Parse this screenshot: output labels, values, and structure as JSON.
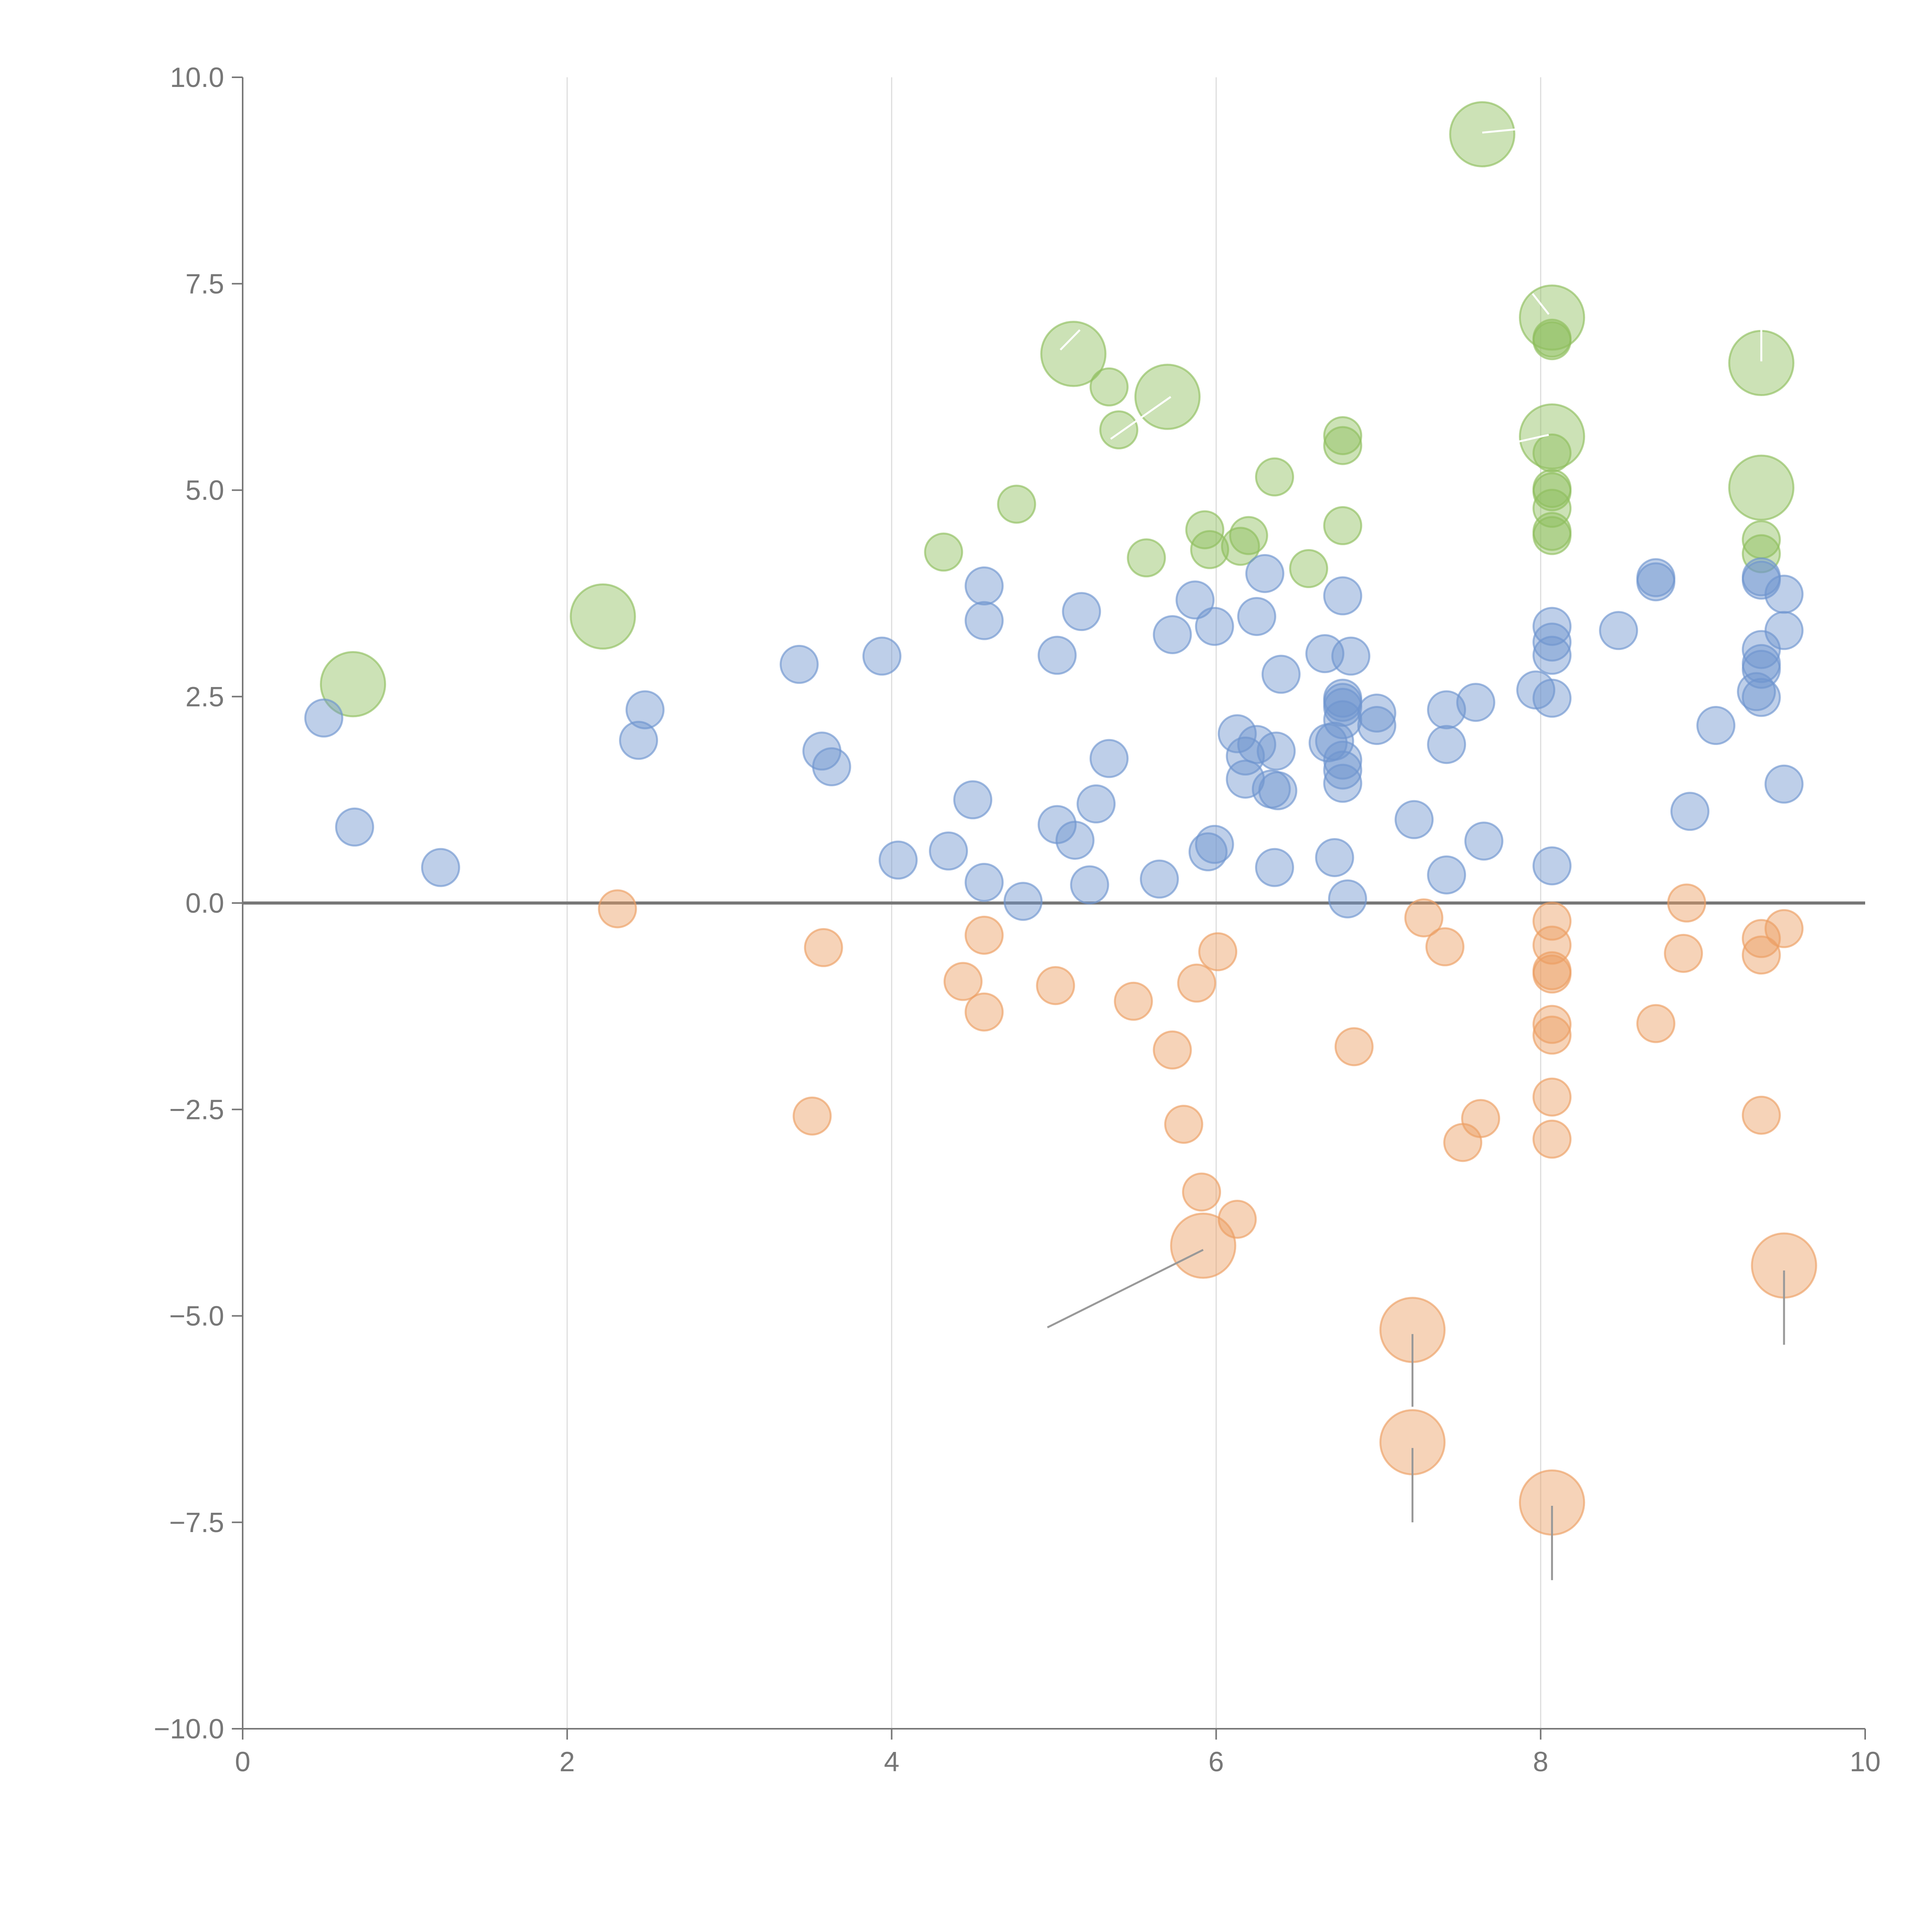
{
  "chart_data": {
    "type": "scatter",
    "title": "",
    "xlabel": "",
    "ylabel": "",
    "xlim": [
      0,
      10
    ],
    "ylim": [
      -10,
      10
    ],
    "x_ticks": [
      "0",
      "2",
      "4",
      "6",
      "8",
      "10"
    ],
    "y_ticks": [
      "10.0",
      "7.5",
      "5.0",
      "2.5",
      "0.0",
      "−2.5",
      "−5.0",
      "−7.5",
      "−10.0"
    ],
    "x_tick_values": [
      0,
      2,
      4,
      6,
      8,
      10
    ],
    "y_tick_values": [
      10,
      7.5,
      5,
      2.5,
      0,
      -2.5,
      -5,
      -7.5,
      -10
    ],
    "vertical_grid_at": [
      2,
      4,
      6,
      8
    ],
    "zero_line_y": 0,
    "colors": {
      "positive": "#8fbe5e",
      "neutral": "#6f95cf",
      "negative": "#ec9e62",
      "axis": "#777777",
      "grid": "#dddddd",
      "leader_light": "#ffffff",
      "leader_dark": "#999999"
    },
    "series": [
      {
        "name": "positive",
        "color": "#8fbe5e",
        "points": [
          {
            "x": 0.68,
            "y": 2.65,
            "size": 3
          },
          {
            "x": 2.22,
            "y": 3.47,
            "size": 3
          },
          {
            "x": 4.32,
            "y": 4.25,
            "size": 1
          },
          {
            "x": 4.77,
            "y": 4.83,
            "size": 1
          },
          {
            "x": 5.12,
            "y": 6.65,
            "size": 3
          },
          {
            "x": 5.34,
            "y": 6.25,
            "size": 1
          },
          {
            "x": 5.4,
            "y": 5.73,
            "size": 1
          },
          {
            "x": 5.57,
            "y": 4.18,
            "size": 1
          },
          {
            "x": 5.7,
            "y": 6.13,
            "size": 3
          },
          {
            "x": 5.93,
            "y": 4.52,
            "size": 1
          },
          {
            "x": 5.96,
            "y": 4.28,
            "size": 1
          },
          {
            "x": 6.15,
            "y": 4.32,
            "size": 1
          },
          {
            "x": 6.2,
            "y": 4.45,
            "size": 1
          },
          {
            "x": 6.36,
            "y": 5.16,
            "size": 1
          },
          {
            "x": 6.57,
            "y": 4.05,
            "size": 1
          },
          {
            "x": 6.78,
            "y": 5.66,
            "size": 1
          },
          {
            "x": 6.78,
            "y": 5.54,
            "size": 1
          },
          {
            "x": 6.78,
            "y": 4.57,
            "size": 1
          },
          {
            "x": 7.64,
            "y": 9.31,
            "size": 3
          },
          {
            "x": 8.07,
            "y": 7.09,
            "size": 3
          },
          {
            "x": 8.07,
            "y": 6.84,
            "size": 1
          },
          {
            "x": 8.07,
            "y": 6.81,
            "size": 1
          },
          {
            "x": 8.07,
            "y": 5.65,
            "size": 3
          },
          {
            "x": 8.07,
            "y": 5.45,
            "size": 1
          },
          {
            "x": 8.07,
            "y": 5.02,
            "size": 1
          },
          {
            "x": 8.07,
            "y": 4.98,
            "size": 1
          },
          {
            "x": 8.07,
            "y": 4.78,
            "size": 1
          },
          {
            "x": 8.07,
            "y": 4.5,
            "size": 1
          },
          {
            "x": 8.07,
            "y": 4.45,
            "size": 1
          },
          {
            "x": 9.36,
            "y": 6.54,
            "size": 3
          },
          {
            "x": 9.36,
            "y": 5.03,
            "size": 3
          },
          {
            "x": 9.36,
            "y": 4.4,
            "size": 1
          },
          {
            "x": 9.36,
            "y": 4.23,
            "size": 1
          }
        ]
      },
      {
        "name": "neutral",
        "color": "#6f95cf",
        "points": [
          {
            "x": 0.5,
            "y": 2.24
          },
          {
            "x": 0.69,
            "y": 0.92
          },
          {
            "x": 1.22,
            "y": 0.43
          },
          {
            "x": 2.44,
            "y": 1.97
          },
          {
            "x": 2.48,
            "y": 2.34
          },
          {
            "x": 3.43,
            "y": 2.89
          },
          {
            "x": 3.57,
            "y": 1.84
          },
          {
            "x": 3.63,
            "y": 1.65
          },
          {
            "x": 3.94,
            "y": 2.99
          },
          {
            "x": 4.04,
            "y": 0.52
          },
          {
            "x": 4.35,
            "y": 0.63
          },
          {
            "x": 4.5,
            "y": 1.25
          },
          {
            "x": 4.57,
            "y": 3.84
          },
          {
            "x": 4.57,
            "y": 3.42
          },
          {
            "x": 4.57,
            "y": 0.25
          },
          {
            "x": 4.81,
            "y": 0.02
          },
          {
            "x": 5.02,
            "y": 3.0
          },
          {
            "x": 5.02,
            "y": 0.95
          },
          {
            "x": 5.13,
            "y": 0.76
          },
          {
            "x": 5.17,
            "y": 3.53
          },
          {
            "x": 5.22,
            "y": 0.22
          },
          {
            "x": 5.26,
            "y": 1.2
          },
          {
            "x": 5.34,
            "y": 1.75
          },
          {
            "x": 5.65,
            "y": 0.29
          },
          {
            "x": 5.73,
            "y": 3.25
          },
          {
            "x": 5.87,
            "y": 3.67
          },
          {
            "x": 5.95,
            "y": 0.62
          },
          {
            "x": 5.99,
            "y": 0.71
          },
          {
            "x": 5.99,
            "y": 3.35
          },
          {
            "x": 6.13,
            "y": 2.05
          },
          {
            "x": 6.18,
            "y": 1.78
          },
          {
            "x": 6.18,
            "y": 1.5
          },
          {
            "x": 6.25,
            "y": 3.47
          },
          {
            "x": 6.25,
            "y": 1.92
          },
          {
            "x": 6.3,
            "y": 3.99
          },
          {
            "x": 6.34,
            "y": 1.38
          },
          {
            "x": 6.36,
            "y": 0.43
          },
          {
            "x": 6.37,
            "y": 1.84
          },
          {
            "x": 6.38,
            "y": 1.36
          },
          {
            "x": 6.4,
            "y": 2.77
          },
          {
            "x": 6.67,
            "y": 3.02
          },
          {
            "x": 6.69,
            "y": 1.94
          },
          {
            "x": 6.73,
            "y": 0.55
          },
          {
            "x": 6.73,
            "y": 1.96
          },
          {
            "x": 6.78,
            "y": 3.72
          },
          {
            "x": 6.78,
            "y": 2.48
          },
          {
            "x": 6.78,
            "y": 2.43
          },
          {
            "x": 6.78,
            "y": 2.37
          },
          {
            "x": 6.78,
            "y": 2.22
          },
          {
            "x": 6.78,
            "y": 1.73
          },
          {
            "x": 6.78,
            "y": 1.61
          },
          {
            "x": 6.78,
            "y": 1.45
          },
          {
            "x": 6.81,
            "y": 0.05
          },
          {
            "x": 6.83,
            "y": 2.99
          },
          {
            "x": 6.99,
            "y": 2.3
          },
          {
            "x": 6.99,
            "y": 2.15
          },
          {
            "x": 7.22,
            "y": 1.01
          },
          {
            "x": 7.42,
            "y": 2.34
          },
          {
            "x": 7.42,
            "y": 1.92
          },
          {
            "x": 7.42,
            "y": 0.34
          },
          {
            "x": 7.6,
            "y": 2.43
          },
          {
            "x": 7.65,
            "y": 0.75
          },
          {
            "x": 7.97,
            "y": 2.58
          },
          {
            "x": 8.07,
            "y": 3.35
          },
          {
            "x": 8.07,
            "y": 3.16
          },
          {
            "x": 8.07,
            "y": 3.0
          },
          {
            "x": 8.07,
            "y": 2.48
          },
          {
            "x": 8.07,
            "y": 0.45
          },
          {
            "x": 8.48,
            "y": 3.3
          },
          {
            "x": 8.71,
            "y": 3.94
          },
          {
            "x": 8.71,
            "y": 3.89
          },
          {
            "x": 8.92,
            "y": 1.11
          },
          {
            "x": 9.08,
            "y": 2.15
          },
          {
            "x": 9.33,
            "y": 2.56
          },
          {
            "x": 9.36,
            "y": 3.95
          },
          {
            "x": 9.36,
            "y": 3.91
          },
          {
            "x": 9.36,
            "y": 3.07
          },
          {
            "x": 9.36,
            "y": 2.9
          },
          {
            "x": 9.36,
            "y": 2.83
          },
          {
            "x": 9.36,
            "y": 2.49
          },
          {
            "x": 9.5,
            "y": 3.74
          },
          {
            "x": 9.5,
            "y": 3.3
          },
          {
            "x": 9.5,
            "y": 1.44
          }
        ]
      },
      {
        "name": "negative",
        "color": "#ec9e62",
        "points": [
          {
            "x": 2.31,
            "y": -0.07,
            "size": 1
          },
          {
            "x": 3.51,
            "y": -2.58,
            "size": 1
          },
          {
            "x": 3.58,
            "y": -0.54,
            "size": 1
          },
          {
            "x": 4.44,
            "y": -0.95,
            "size": 1
          },
          {
            "x": 4.57,
            "y": -0.39,
            "size": 1
          },
          {
            "x": 4.57,
            "y": -1.32,
            "size": 1
          },
          {
            "x": 5.01,
            "y": -1.0,
            "size": 1
          },
          {
            "x": 5.49,
            "y": -1.19,
            "size": 1
          },
          {
            "x": 5.73,
            "y": -1.78,
            "size": 1
          },
          {
            "x": 5.8,
            "y": -2.68,
            "size": 1
          },
          {
            "x": 5.88,
            "y": -0.97,
            "size": 1
          },
          {
            "x": 5.91,
            "y": -3.5,
            "size": 1
          },
          {
            "x": 5.92,
            "y": -4.15,
            "size": 3
          },
          {
            "x": 6.01,
            "y": -0.59,
            "size": 1
          },
          {
            "x": 6.13,
            "y": -3.83,
            "size": 1
          },
          {
            "x": 6.85,
            "y": -1.74,
            "size": 1
          },
          {
            "x": 7.21,
            "y": -5.17,
            "size": 3
          },
          {
            "x": 7.21,
            "y": -6.53,
            "size": 3
          },
          {
            "x": 7.28,
            "y": -0.18,
            "size": 1
          },
          {
            "x": 7.41,
            "y": -0.53,
            "size": 1
          },
          {
            "x": 7.52,
            "y": -2.9,
            "size": 1
          },
          {
            "x": 7.63,
            "y": -2.61,
            "size": 1
          },
          {
            "x": 8.07,
            "y": -0.22,
            "size": 1
          },
          {
            "x": 8.07,
            "y": -0.51,
            "size": 1
          },
          {
            "x": 8.07,
            "y": -0.82,
            "size": 1
          },
          {
            "x": 8.07,
            "y": -0.86,
            "size": 1
          },
          {
            "x": 8.07,
            "y": -1.47,
            "size": 1
          },
          {
            "x": 8.07,
            "y": -1.6,
            "size": 1
          },
          {
            "x": 8.07,
            "y": -2.35,
            "size": 1
          },
          {
            "x": 8.07,
            "y": -2.86,
            "size": 1
          },
          {
            "x": 8.07,
            "y": -7.26,
            "size": 3
          },
          {
            "x": 8.71,
            "y": -1.46,
            "size": 1
          },
          {
            "x": 8.88,
            "y": -0.61,
            "size": 1
          },
          {
            "x": 8.9,
            "y": 0.0,
            "size": 1
          },
          {
            "x": 9.36,
            "y": -0.43,
            "size": 1
          },
          {
            "x": 9.36,
            "y": -0.63,
            "size": 1
          },
          {
            "x": 9.36,
            "y": -2.57,
            "size": 1
          },
          {
            "x": 9.5,
            "y": -0.31,
            "size": 1
          },
          {
            "x": 9.5,
            "y": -4.39,
            "size": 3
          }
        ]
      }
    ],
    "annotations": [
      {
        "from": [
          5.16,
          6.94
        ],
        "to": [
          5.04,
          6.7
        ],
        "color": "leader_light"
      },
      {
        "from": [
          5.35,
          5.62
        ],
        "to": [
          5.72,
          6.13
        ],
        "color": "leader_light"
      },
      {
        "from": [
          7.85,
          9.37
        ],
        "to": [
          7.64,
          9.33
        ],
        "color": "leader_light"
      },
      {
        "from": [
          7.95,
          7.38
        ],
        "to": [
          8.05,
          7.13
        ],
        "color": "leader_light"
      },
      {
        "from": [
          7.8,
          5.56
        ],
        "to": [
          8.05,
          5.67
        ],
        "color": "leader_light"
      },
      {
        "from": [
          9.36,
          6.96
        ],
        "to": [
          9.36,
          6.56
        ],
        "color": "leader_light"
      },
      {
        "from": [
          4.96,
          -5.14
        ],
        "to": [
          5.92,
          -4.2
        ],
        "color": "leader_dark"
      },
      {
        "from": [
          7.21,
          -5.22
        ],
        "to": [
          7.21,
          -6.1
        ],
        "color": "leader_dark"
      },
      {
        "from": [
          7.21,
          -6.6
        ],
        "to": [
          7.21,
          -7.5
        ],
        "color": "leader_dark"
      },
      {
        "from": [
          8.07,
          -7.3
        ],
        "to": [
          8.07,
          -8.2
        ],
        "color": "leader_dark"
      },
      {
        "from": [
          9.5,
          -4.45
        ],
        "to": [
          9.5,
          -5.35
        ],
        "color": "leader_dark"
      }
    ]
  }
}
